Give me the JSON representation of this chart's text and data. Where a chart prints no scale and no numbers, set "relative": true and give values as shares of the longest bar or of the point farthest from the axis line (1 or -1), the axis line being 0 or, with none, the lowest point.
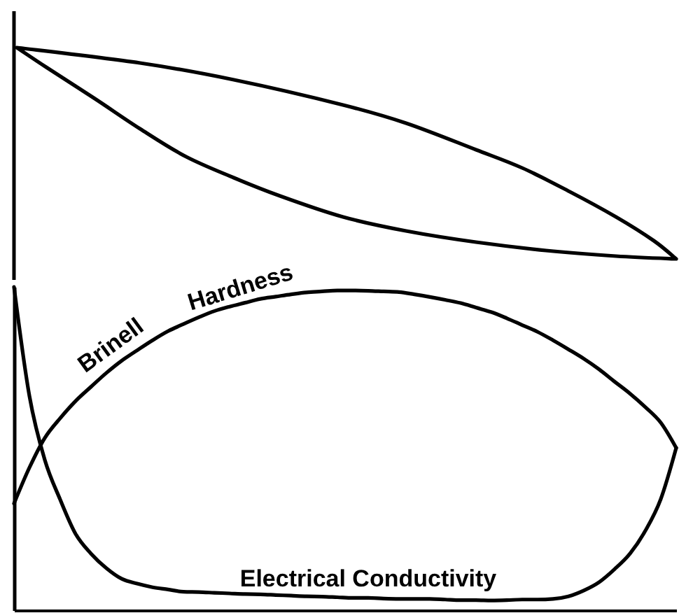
{
  "chart_data": {
    "type": "line",
    "relative": true,
    "categories": [
      null,
      null,
      null,
      null,
      null,
      null,
      null,
      null,
      null,
      null,
      null,
      null,
      null,
      null,
      null,
      null,
      null,
      null,
      null,
      null,
      null,
      null,
      null,
      null,
      null,
      null,
      null,
      null,
      null,
      null,
      null,
      null,
      null,
      null,
      null,
      null,
      null,
      null,
      null,
      null,
      null,
      null,
      null,
      null
    ],
    "series": [
      {
        "name": "Brinell Hardness",
        "color": "#000000",
        "values": [
          0.33,
          0.441,
          0.533,
          0.594,
          0.647,
          0.691,
          0.734,
          0.772,
          0.804,
          0.835,
          0.863,
          0.885,
          0.906,
          0.925,
          0.939,
          0.951,
          0.963,
          0.97,
          0.977,
          0.983,
          0.986,
          0.989,
          0.989,
          0.988,
          0.986,
          0.984,
          0.977,
          0.969,
          0.96,
          0.95,
          0.936,
          0.922,
          0.903,
          0.882,
          0.861,
          0.835,
          0.807,
          0.778,
          0.745,
          0.707,
          0.67,
          0.628,
          0.58,
          0.502
        ]
      },
      {
        "name": "Electrical Conductivity",
        "color": "#000000",
        "values": [
          1.0,
          0.663,
          0.465,
          0.342,
          0.236,
          0.175,
          0.13,
          0.097,
          0.082,
          0.071,
          0.064,
          0.057,
          0.056,
          0.054,
          0.052,
          0.05,
          0.049,
          0.047,
          0.045,
          0.043,
          0.042,
          0.04,
          0.038,
          0.038,
          0.036,
          0.035,
          0.035,
          0.035,
          0.033,
          0.031,
          0.031,
          0.03,
          0.031,
          0.033,
          0.033,
          0.035,
          0.043,
          0.061,
          0.087,
          0.127,
          0.175,
          0.246,
          0.344,
          0.502
        ]
      }
    ]
  }
}
